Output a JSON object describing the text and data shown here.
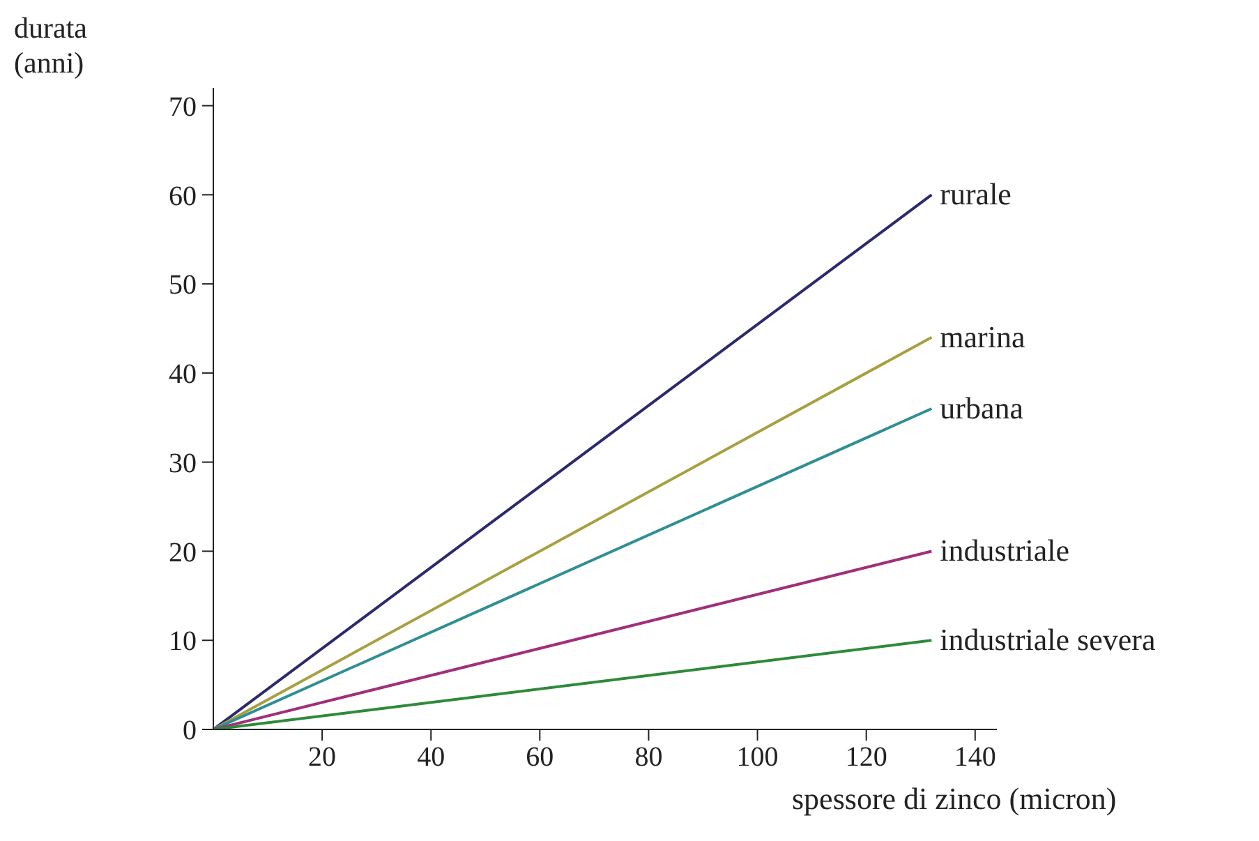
{
  "chart_data": {
    "type": "line",
    "xlabel": "spessore di zinco (micron)",
    "ylabel": "durata (anni)",
    "x": [
      0,
      132
    ],
    "series": [
      {
        "name": "rurale",
        "color": "#2b2a6e",
        "values": [
          0,
          60
        ]
      },
      {
        "name": "marina",
        "color": "#a8a040",
        "values": [
          0,
          44
        ]
      },
      {
        "name": "urbana",
        "color": "#2f8f95",
        "values": [
          0,
          36
        ]
      },
      {
        "name": "industriale",
        "color": "#a0307a",
        "values": [
          0,
          20
        ]
      },
      {
        "name": "industriale severa",
        "color": "#2e8a3a",
        "values": [
          0,
          10
        ]
      }
    ],
    "xlim": [
      0,
      144
    ],
    "ylim": [
      0,
      72
    ],
    "xticks": [
      20,
      40,
      60,
      80,
      100,
      120,
      140
    ],
    "yticks": [
      0,
      10,
      20,
      30,
      40,
      50,
      60,
      70
    ],
    "grid": false,
    "legend": false,
    "marker": "none",
    "line_style": "solid"
  }
}
